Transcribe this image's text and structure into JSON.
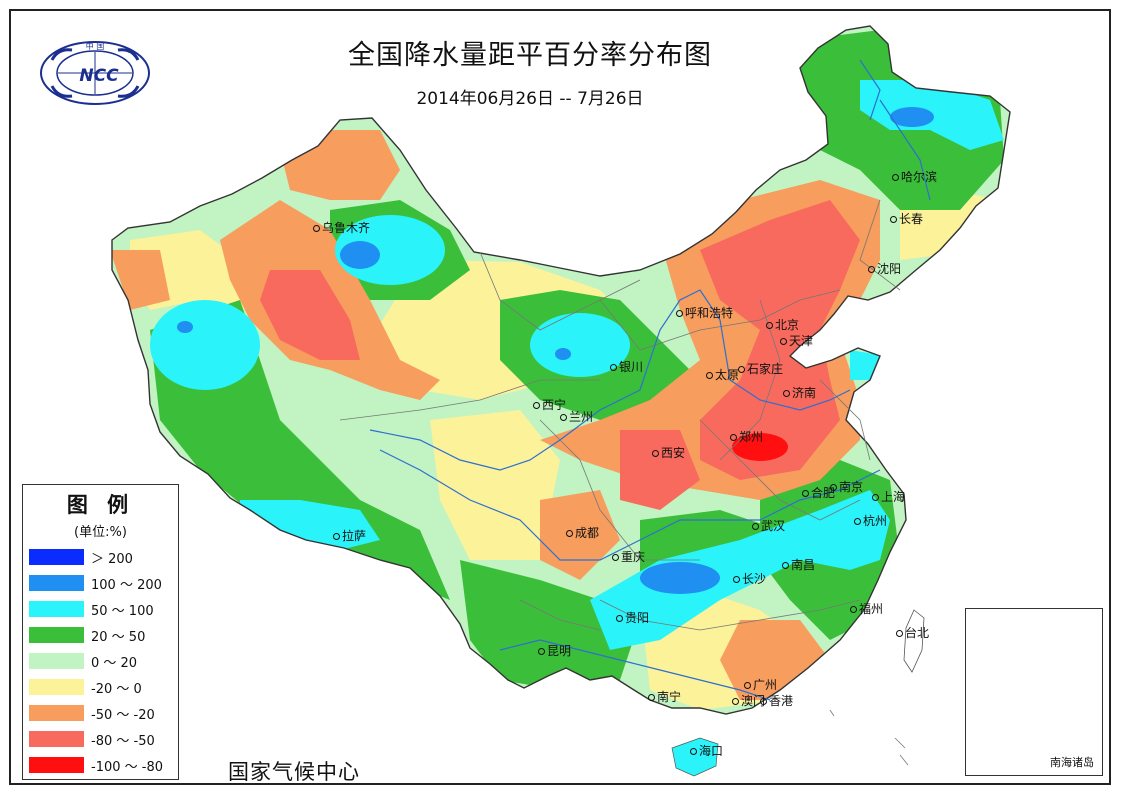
{
  "title": "全国降水量距平百分率分布图",
  "subtitle": "2014年06月26日 -- 7月26日",
  "organization": "国家气候中心",
  "logo": {
    "text": "NCC",
    "arc_text": "中 国"
  },
  "legend": {
    "title": "图 例",
    "unit": "(单位:%)",
    "items": [
      {
        "label": "＞ 200",
        "color": "#0a2cff"
      },
      {
        "label": "100 ～ 200",
        "color": "#1f8ff2"
      },
      {
        "label": "50 ～ 100",
        "color": "#2af3f9"
      },
      {
        "label": "20 ～ 50",
        "color": "#3bbf3a"
      },
      {
        "label": "0 ～ 20",
        "color": "#c2f3c3"
      },
      {
        "label": "-20 ～ 0",
        "color": "#fbf29a"
      },
      {
        "label": "-50 ～ -20",
        "color": "#f79d5e"
      },
      {
        "label": "-80 ～ -50",
        "color": "#f86a5d"
      },
      {
        "label": "-100 ～ -80",
        "color": "#ff0f0f"
      }
    ]
  },
  "inset": {
    "label": "南海诸岛"
  },
  "cities": [
    "乌鲁木齐",
    "哈尔滨",
    "长春",
    "沈阳",
    "呼和浩特",
    "北京",
    "天津",
    "石家庄",
    "太原",
    "银川",
    "西宁",
    "兰州",
    "济南",
    "郑州",
    "西安",
    "合肥",
    "南京",
    "上海",
    "杭州",
    "武汉",
    "成都",
    "重庆",
    "拉萨",
    "长沙",
    "南昌",
    "福州",
    "贵阳",
    "台北",
    "昆明",
    "南宁",
    "广州",
    "澳门",
    "香港",
    "海口"
  ],
  "colors": {
    "gt200": "#0a2cff",
    "c100_200": "#1f8ff2",
    "c50_100": "#2af3f9",
    "c20_50": "#3bbf3a",
    "c0_20": "#c2f3c3",
    "cm20_0": "#fbf29a",
    "cm50_m20": "#f79d5e",
    "cm80_m50": "#f86a5d",
    "cm100_m80": "#ff0f0f",
    "river": "#2d6fd1",
    "border": "#666666"
  }
}
